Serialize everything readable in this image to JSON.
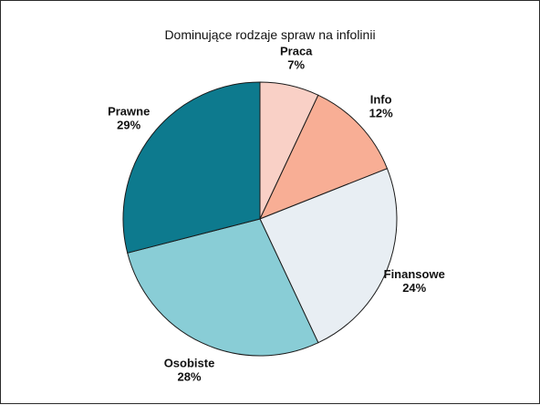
{
  "chart_data": {
    "type": "pie",
    "title": "Dominujące rodzaje spraw na infolinii",
    "start_angle_deg": 0,
    "direction": "clockwise",
    "slices": [
      {
        "label": "Praca",
        "value": 7,
        "value_label": "7%",
        "color": "#f9d0c6"
      },
      {
        "label": "Info",
        "value": 12,
        "value_label": "12%",
        "color": "#f8ae95"
      },
      {
        "label": "Finansowe",
        "value": 24,
        "value_label": "24%",
        "color": "#e8eef3"
      },
      {
        "label": "Osobiste",
        "value": 28,
        "value_label": "28%",
        "color": "#89cdd6"
      },
      {
        "label": "Prawne",
        "value": 29,
        "value_label": "29%",
        "color": "#0d7a8e"
      }
    ]
  }
}
